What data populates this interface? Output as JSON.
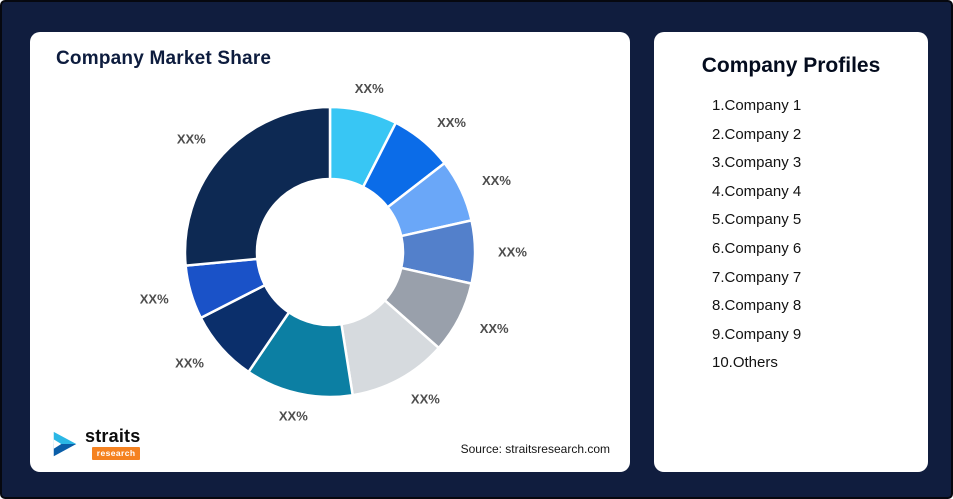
{
  "page": {
    "background_color": "#101d3e",
    "card_color": "#ffffff"
  },
  "market_share_card": {
    "title": "Company Market Share",
    "source": "Source: straitsresearch.com",
    "logo": {
      "name": "straits",
      "sub": "research",
      "colors": {
        "icon_primary": "#2bb7e5",
        "icon_secondary": "#0a5ea8",
        "badge_bg": "#f58220",
        "badge_text": "#ffffff"
      }
    }
  },
  "profiles_card": {
    "title": "Company Profiles",
    "items": [
      "1.Company 1",
      "2.Company 2",
      "3.Company 3",
      "4.Company 4",
      "5.Company 5",
      "6.Company 6",
      "7.Company 7",
      "8.Company 8",
      "9.Company 9",
      "10.Others"
    ]
  },
  "chart_data": {
    "type": "pie",
    "variant": "donut",
    "title": "Company Market Share",
    "direction": "clockwise",
    "start_angle": "12 o'clock",
    "inner_radius_ratio": 0.5,
    "hole_fill": "#ffffff",
    "note": "All slice data labels are placeholder text 'XX%'; slice sizes below are estimated from pixel angles.",
    "segments": [
      {
        "company": "Company 1",
        "label": "XX%",
        "value_pct_estimated": 7.5,
        "color": "#38c6f4"
      },
      {
        "company": "Company 2",
        "label": "XX%",
        "value_pct_estimated": 7.0,
        "color": "#0b6ce8"
      },
      {
        "company": "Company 3",
        "label": "XX%",
        "value_pct_estimated": 7.0,
        "color": "#6aa7f8"
      },
      {
        "company": "Company 4",
        "label": "XX%",
        "value_pct_estimated": 7.0,
        "color": "#5380cb"
      },
      {
        "company": "Company 5",
        "label": "XX%",
        "value_pct_estimated": 8.0,
        "color": "#99a0ab"
      },
      {
        "company": "Company 6",
        "label": "XX%",
        "value_pct_estimated": 11.0,
        "color": "#d6dade"
      },
      {
        "company": "Company 7",
        "label": "XX%",
        "value_pct_estimated": 12.0,
        "color": "#0c7fa3"
      },
      {
        "company": "Company 8",
        "label": "XX%",
        "value_pct_estimated": 8.0,
        "color": "#0b2f6b"
      },
      {
        "company": "Company 9",
        "label": "XX%",
        "value_pct_estimated": 6.0,
        "color": "#1a52c8"
      },
      {
        "company": "Others",
        "label": "XX%",
        "value_pct_estimated": 26.5,
        "color": "#0d2953"
      }
    ]
  }
}
